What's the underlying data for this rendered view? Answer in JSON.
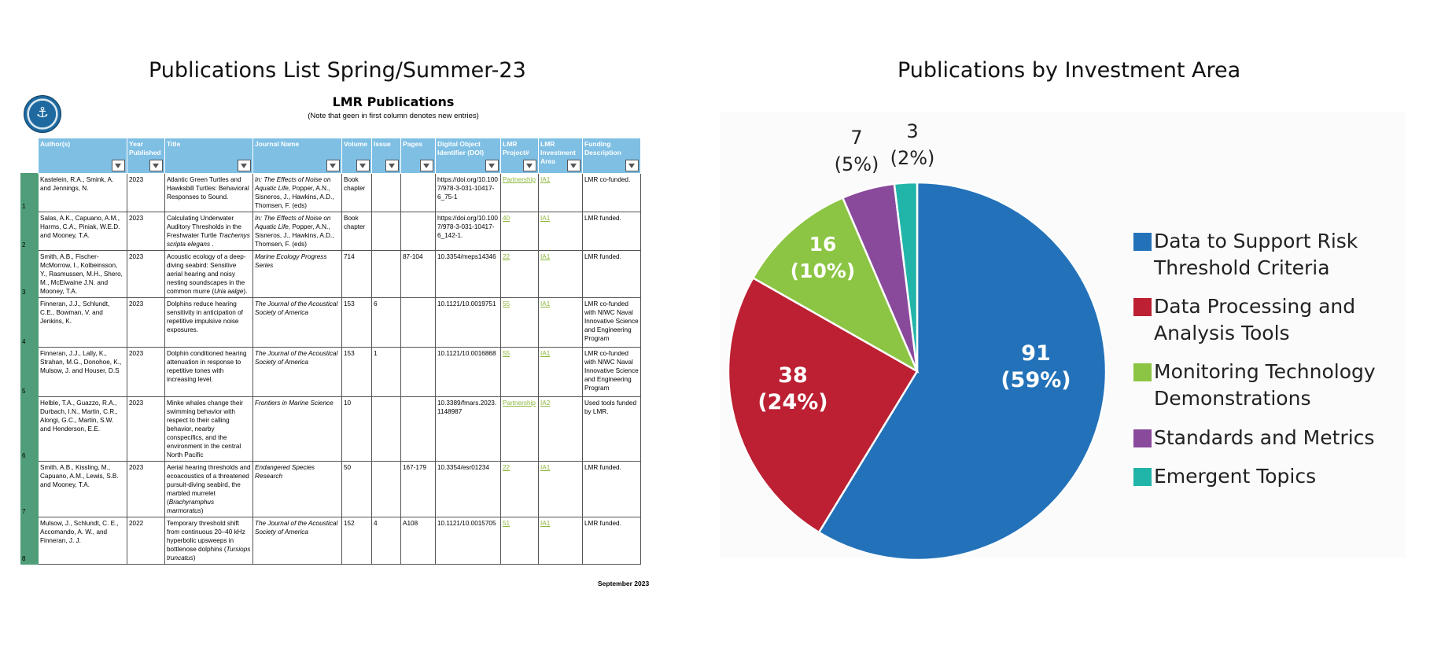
{
  "left_heading": "Publications List Spring/Summer-23",
  "right_heading": "Publications by Investment Area",
  "sheet": {
    "title": "LMR Publications",
    "note": "(Note that geen in first column denotes new entries)",
    "date": "September 2023",
    "headers": [
      "Author(s)",
      "Year Published",
      "Title",
      "Journal Name",
      "Volume",
      "Issue",
      "Pages",
      "Digital Object Identifier (DOI)",
      "LMR Project#",
      "LMR Investment Area",
      "Funding Description"
    ],
    "rows": [
      {
        "num": "1",
        "authors": "Kastelein, R.A., Smink, A. and Jennings, N.",
        "year": "2023",
        "title": "Atlantic Green Turtles and Hawksbill Turtles: Behavioral Responses to Sound.",
        "journal": "In: The Effects of Noise on Aquatic Life, Popper, A.N., Sisneros, J., Hawkins, A.D., Thomsen, F. (eds)",
        "volume": "Book chapter",
        "issue": "",
        "pages": "",
        "doi": "https://doi.org/10.1007/978-3-031-10417-6_75-1",
        "project": "Partnership",
        "area": "IA1",
        "funding": "LMR co-funded."
      },
      {
        "num": "2",
        "authors": "Salas, A.K., Capuano, A.M., Harms, C.A., Piniak, W.E.D. and Mooney, T.A.",
        "year": "2023",
        "title": "Calculating Underwater Auditory Thresholds in the Freshwater Turtle Trachemys scripta elegans .",
        "journal": "In: The Effects of Noise on Aquatic Life, Popper, A.N., Sisneros, J., Hawkins, A.D., Thomsen, F. (eds)",
        "volume": "Book chapter",
        "issue": "",
        "pages": "",
        "doi": "https://doi.org/10.1007/978-3-031-10417-6_142-1.",
        "project": "40",
        "area": "IA1",
        "funding": "LMR funded."
      },
      {
        "num": "3",
        "authors": "Smith, A.B., Fischer-McMorrow, I., Kolbeinsson, Y., Rasmussen, M.H., Shero, M., McElwaine J.N. and Mooney, T.A.",
        "year": "2023",
        "title": "Acoustic ecology of a deep-diving seabird: Sensitive aerial hearing and noisy nesting soundscapes in the common murre (Uria aalge).",
        "journal": "Marine Ecology Progress Series",
        "volume": "714",
        "issue": "",
        "pages": "87-104",
        "doi": "10.3354/meps14346",
        "project": "22",
        "area": "IA1",
        "funding": "LMR funded."
      },
      {
        "num": "4",
        "authors": "Finneran, J.J., Schlundt, C.E., Bowman, V. and Jenkins, K.",
        "year": "2023",
        "title": "Dolphins reduce hearing sensitivity in anticipation of repetitive impulsive noise exposures.",
        "journal": "The Journal of the Acoustical Society of America",
        "volume": "153",
        "issue": "6",
        "pages": "",
        "doi": "10.1121/10.0019751",
        "project": "55",
        "area": "IA1",
        "funding": "LMR co-funded with NIWC Naval Innovative Science and Engineering Program"
      },
      {
        "num": "5",
        "authors": "Finneran, J.J., Lally, K., Strahan, M.G., Donohoe, K., Mulsow, J. and Houser, D.S",
        "year": "2023",
        "title": "Dolphin conditioned hearing attenuation in response to repetitive tones with increasing level.",
        "journal": "The Journal of the Acoustical Society of America",
        "volume": "153",
        "issue": "1",
        "pages": "",
        "doi": "10.1121/10.0016868",
        "project": "55",
        "area": "IA1",
        "funding": "LMR co-funded with NIWC Naval Innovative Science and Engineering Program"
      },
      {
        "num": "6",
        "authors": "Helble, T.A., Guazzo, R.A., Durbach, I.N., Martin, C.R., Alongi, G.C., Martin, S.W. and Henderson, E.E.",
        "year": "2023",
        "title": "Minke whales change their swimming behavior with respect to their calling behavior, nearby conspecifics, and the environment in the central North Pacific",
        "journal": "Frontiers in Marine Science",
        "volume": "10",
        "issue": "",
        "pages": "",
        "doi": "10.3389/fmars.2023.1148987",
        "project": "Partnership",
        "area": "IA2",
        "funding": "Used tools funded by LMR."
      },
      {
        "num": "7",
        "authors": "Smith, A.B., Kissling, M., Capuano, A.M., Lewis, S.B. and Mooney, T.A.",
        "year": "2023",
        "title": "Aerial hearing thresholds and ecoacoustics of a threatened pursuit-diving seabird, the marbled murrelet (Brachyramphus marmoratus)",
        "journal": "Endangered Species Research",
        "volume": "50",
        "issue": "",
        "pages": "167-179",
        "doi": "10.3354/esr01234",
        "project": "22",
        "area": "IA1",
        "funding": "LMR funded."
      },
      {
        "num": "8",
        "authors": "Mulsow, J., Schlundt, C. E., Accomando, A. W., and Finneran, J. J.",
        "year": "2022",
        "title": "Temporary threshold shift from continuous 20–40 kHz hyperbolic upsweeps in bottlenose dolphins (Tursiops truncatus)",
        "journal": "The Journal of the Acoustical Society of America",
        "volume": "152",
        "issue": "4",
        "pages": "A108",
        "doi": "10.1121/10.0015705",
        "project": "51",
        "area": "IA1",
        "funding": "LMR funded."
      }
    ]
  },
  "chart_data": {
    "type": "pie",
    "title": "Publications by Investment Area",
    "slices": [
      {
        "label": "Data to Support Risk Threshold Criteria",
        "value": 91,
        "percent": "59%",
        "color": "#2372b9"
      },
      {
        "label": "Data Processing and Analysis Tools",
        "value": 38,
        "percent": "24%",
        "color": "#bc2032"
      },
      {
        "label": "Monitoring Technology Demonstrations",
        "value": 16,
        "percent": "10%",
        "color": "#8cc543"
      },
      {
        "label": "Standards and Metrics",
        "value": 7,
        "percent": "5%",
        "color": "#8a4a9c"
      },
      {
        "label": "Emergent Topics",
        "value": 3,
        "percent": "2%",
        "color": "#20b5a8"
      }
    ],
    "legend_position": "right"
  }
}
